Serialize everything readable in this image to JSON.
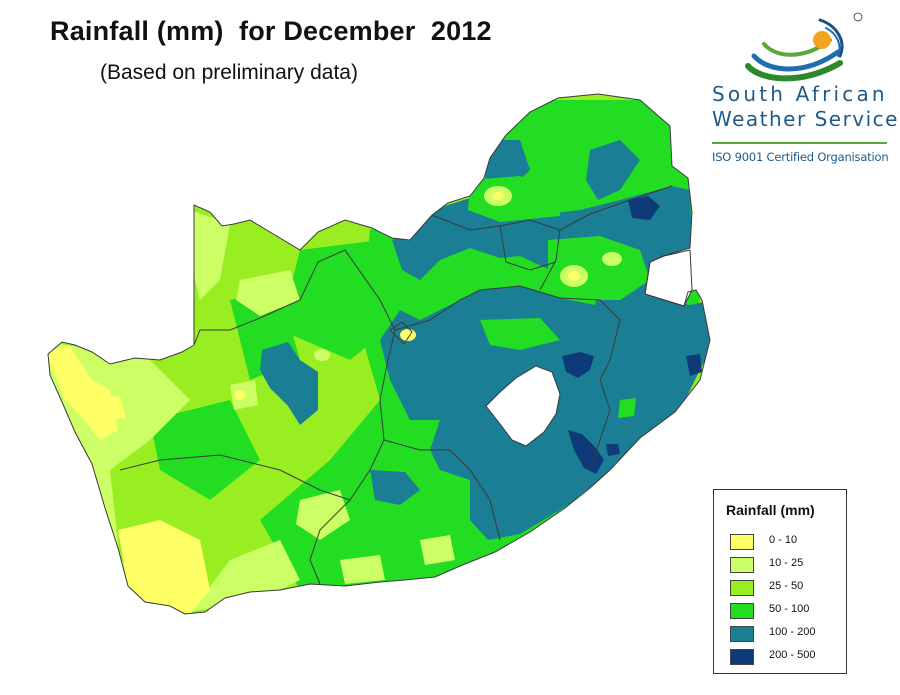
{
  "title": "Rainfall (mm)  for December  2012",
  "subtitle": "(Based on preliminary data)",
  "logo": {
    "org_line1": "South African",
    "org_line2": "Weather Service",
    "certification": "ISO 9001 Certified Organisation",
    "registered_mark": "®"
  },
  "legend": {
    "title": "Rainfall (mm)",
    "classes": [
      {
        "label": "0 - 10",
        "color": "#ffff66"
      },
      {
        "label": "10 - 25",
        "color": "#ccff66"
      },
      {
        "label": "25 - 50",
        "color": "#99ee22"
      },
      {
        "label": "50 - 100",
        "color": "#22dd22"
      },
      {
        "label": "100 - 200",
        "color": "#1a7f94"
      },
      {
        "label": "200 - 500",
        "color": "#0f3a7a"
      }
    ]
  },
  "map_colors": {
    "boundary": "#3a3a3a",
    "lesotho_fill": "#ffffff"
  }
}
